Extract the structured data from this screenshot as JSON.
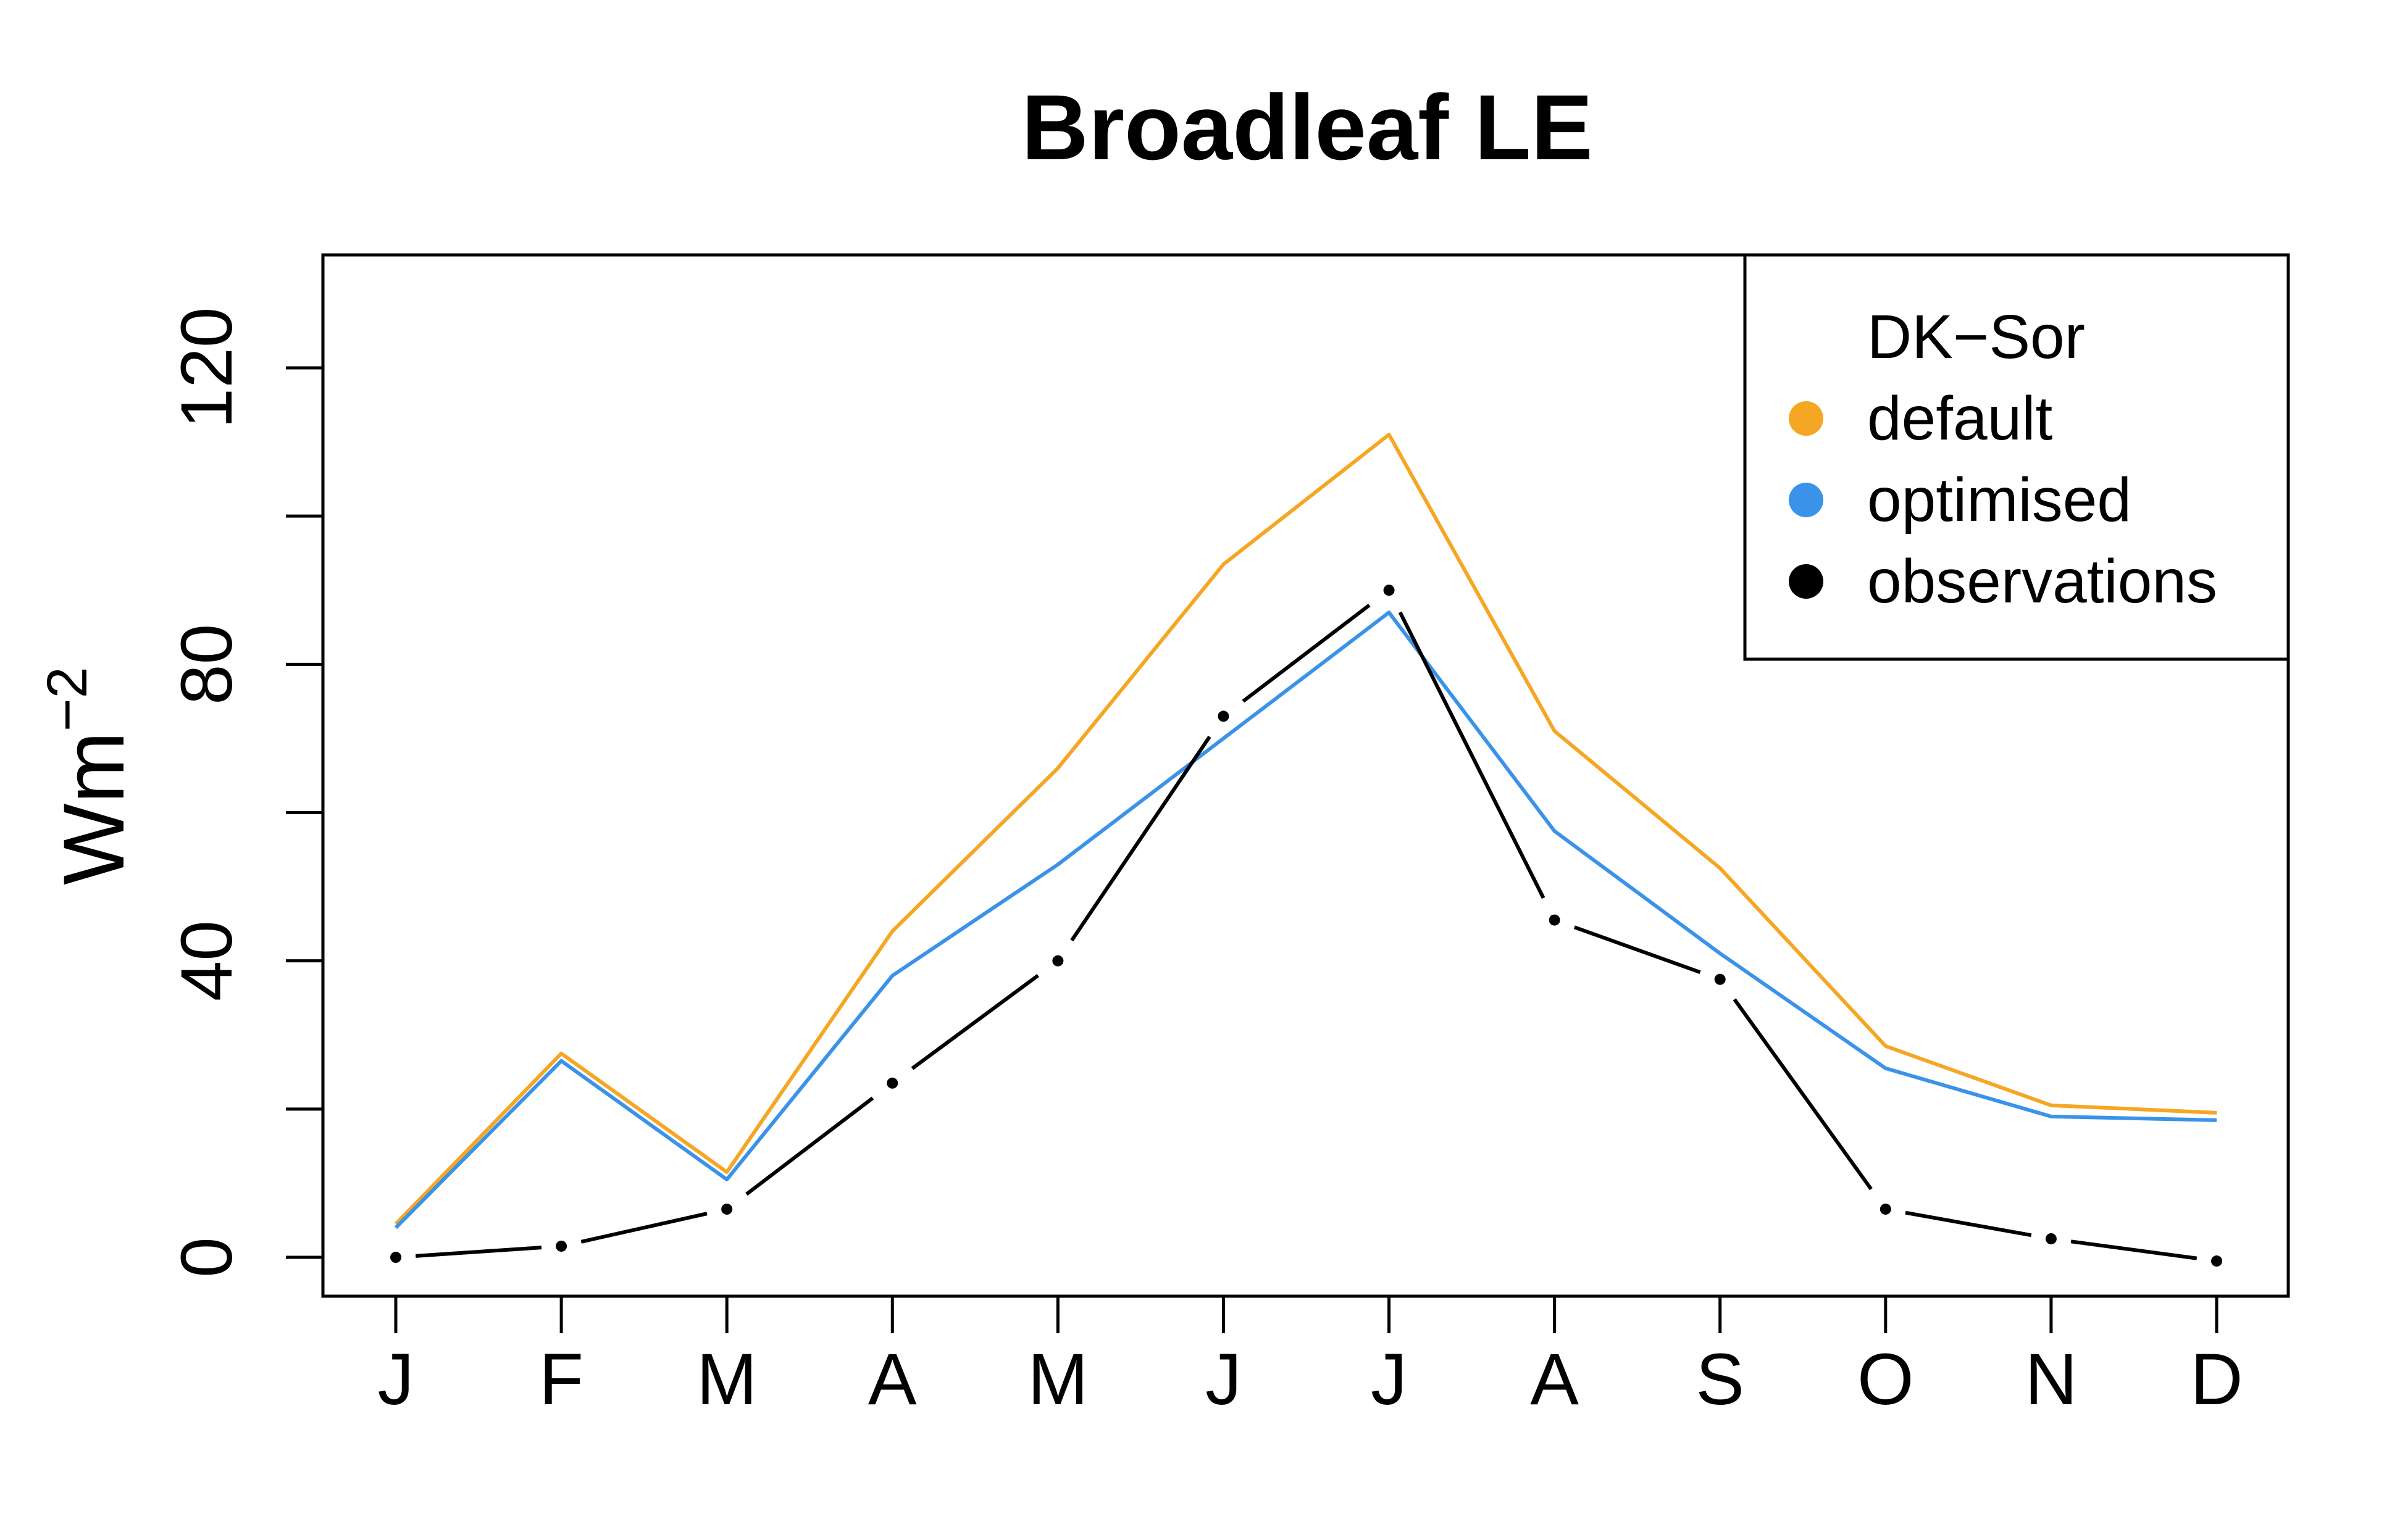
{
  "chart_data": {
    "type": "line",
    "title": "Broadleaf LE",
    "xlabel": "",
    "ylabel": "Wm",
    "ylabel_superscript": "−2",
    "categories": [
      "J",
      "F",
      "M",
      "A",
      "M",
      "J",
      "J",
      "A",
      "S",
      "O",
      "N",
      "D"
    ],
    "ylim": [
      -10,
      135
    ],
    "yticks": [
      0,
      20,
      40,
      60,
      80,
      100,
      120
    ],
    "ytick_labels": [
      "0",
      "",
      "40",
      "",
      "80",
      "",
      "120"
    ],
    "grid": false,
    "legend": {
      "title": "DK−Sor",
      "placement": "top-right",
      "entries": [
        "default",
        "optimised",
        "observations"
      ]
    },
    "series": [
      {
        "name": "default",
        "color": "#F5A623",
        "style": "solid",
        "values": [
          4.5,
          27.5,
          11.5,
          44,
          66,
          93.5,
          111,
          71,
          52.5,
          28.5,
          20.5,
          19.5
        ]
      },
      {
        "name": "optimised",
        "color": "#3A93E8",
        "style": "solid",
        "values": [
          4,
          26.5,
          10.5,
          38,
          53,
          70,
          87,
          57.5,
          41,
          25.5,
          19,
          18.5
        ]
      },
      {
        "name": "observations",
        "color": "#000000",
        "style": "dash-dot",
        "values": [
          0,
          1.5,
          6.5,
          23.5,
          40,
          73,
          90,
          45.5,
          37.5,
          6.5,
          2.5,
          -0.5
        ]
      }
    ]
  }
}
